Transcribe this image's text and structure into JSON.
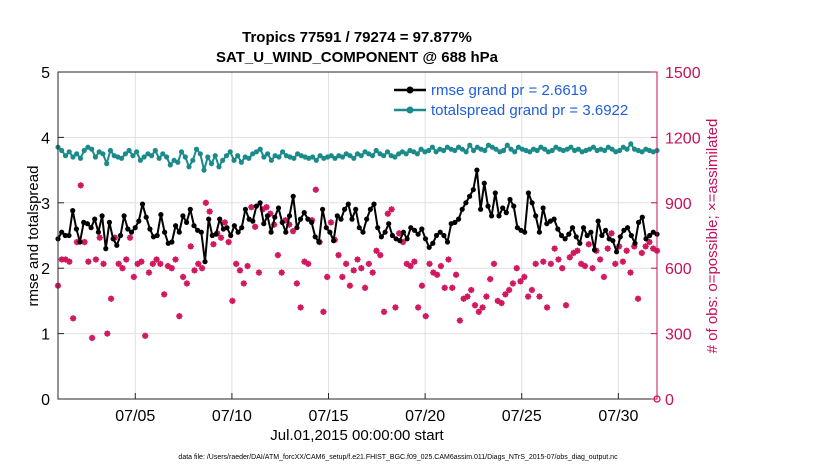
{
  "chart_data": {
    "type": "line",
    "title_line1": "Tropics 77591 / 79274 = 97.877%",
    "title_line2": "SAT_U_WIND_COMPONENT @ 688 hPa",
    "xlabel": "Jul.01,2015 00:00:00 start",
    "ylabel_left": "rmse and totalspread",
    "ylabel_right": "# of obs: o=possible; ×=assimilated",
    "footnote": "data file: /Users/raeder/DAI/ATM_forcXX/CAM6_setup/f.e21.FHIST_BGC.f09_025.CAM6assim.011/Diags_NTrS_2015-07/obs_diag_output.nc",
    "x_range": [
      1,
      32
    ],
    "ylim_left": [
      0,
      5
    ],
    "ylim_right": [
      0,
      1500
    ],
    "x_ticks": [
      5,
      10,
      15,
      20,
      25,
      30
    ],
    "x_tick_labels": [
      "07/05",
      "07/10",
      "07/15",
      "07/20",
      "07/25",
      "07/30"
    ],
    "y_ticks_left": [
      0,
      1,
      2,
      3,
      4,
      5
    ],
    "y_ticks_left_labels": [
      "0",
      "1",
      "2",
      "3",
      "4",
      "5"
    ],
    "y_ticks_right": [
      0,
      300,
      600,
      900,
      1200,
      1500
    ],
    "y_ticks_right_labels": [
      "0",
      "300",
      "600",
      "900",
      "1200",
      "1500"
    ],
    "grid": true,
    "legend_position": "top-right",
    "series": [
      {
        "name": "rmse grand pr = 2.6619",
        "axis": "left",
        "color": "#000000",
        "values": [
          2.45,
          2.55,
          2.5,
          2.5,
          2.88,
          2.6,
          2.4,
          2.7,
          2.68,
          2.62,
          2.75,
          2.55,
          2.8,
          2.3,
          2.7,
          2.45,
          2.35,
          2.5,
          2.8,
          2.6,
          2.55,
          2.62,
          2.72,
          2.98,
          2.78,
          2.6,
          2.48,
          2.5,
          2.82,
          2.55,
          2.38,
          2.4,
          2.65,
          2.55,
          2.8,
          2.7,
          2.9,
          2.65,
          2.58,
          2.55,
          2.1,
          2.75,
          2.5,
          2.52,
          2.75,
          2.6,
          2.62,
          2.5,
          2.65,
          2.55,
          2.62,
          2.9,
          2.75,
          2.72,
          2.95,
          3.0,
          2.68,
          2.8,
          2.55,
          2.78,
          2.92,
          2.7,
          2.55,
          2.8,
          3.1,
          2.62,
          2.75,
          2.85,
          2.75,
          2.7,
          2.48,
          2.4,
          2.9,
          2.62,
          2.55,
          2.42,
          2.8,
          2.75,
          2.9,
          2.98,
          2.75,
          2.9,
          2.62,
          2.55,
          2.75,
          2.9,
          2.98,
          2.62,
          2.48,
          2.55,
          2.68,
          2.5,
          2.45,
          2.42,
          2.55,
          2.45,
          2.62,
          2.58,
          2.52,
          2.6,
          2.45,
          2.32,
          2.38,
          2.5,
          2.55,
          2.5,
          2.4,
          2.68,
          2.7,
          2.75,
          2.9,
          3.0,
          3.1,
          3.2,
          3.5,
          2.9,
          3.3,
          2.95,
          2.8,
          3.15,
          2.8,
          2.92,
          2.85,
          3.05,
          2.95,
          2.62,
          2.58,
          2.55,
          3.15,
          3.0,
          2.8,
          2.55,
          2.92,
          2.68,
          2.72,
          2.75,
          2.6,
          2.5,
          2.45,
          2.52,
          2.62,
          2.48,
          2.38,
          2.62,
          2.5,
          2.55,
          2.28,
          2.72,
          2.5,
          2.58,
          2.45,
          2.42,
          2.25,
          2.48,
          2.58,
          2.62,
          2.5,
          2.38,
          2.7,
          2.78,
          2.45,
          2.5,
          2.55,
          2.52
        ]
      },
      {
        "name": "totalspread grand pr = 3.6922",
        "axis": "left",
        "color": "#1b8a8a",
        "values": [
          3.85,
          3.8,
          3.72,
          3.78,
          3.7,
          3.75,
          3.68,
          3.8,
          3.85,
          3.82,
          3.7,
          3.78,
          3.75,
          3.6,
          3.8,
          3.72,
          3.7,
          3.68,
          3.75,
          3.8,
          3.72,
          3.78,
          3.65,
          3.7,
          3.75,
          3.72,
          3.8,
          3.68,
          3.75,
          3.7,
          3.58,
          3.65,
          3.62,
          3.78,
          3.7,
          3.55,
          3.65,
          3.82,
          3.75,
          3.5,
          3.7,
          3.6,
          3.72,
          3.55,
          3.65,
          3.72,
          3.78,
          3.65,
          3.72,
          3.62,
          3.7,
          3.68,
          3.75,
          3.78,
          3.82,
          3.7,
          3.75,
          3.65,
          3.72,
          3.7,
          3.78,
          3.72,
          3.7,
          3.68,
          3.75,
          3.72,
          3.7,
          3.68,
          3.7,
          3.65,
          3.72,
          3.68,
          3.7,
          3.72,
          3.68,
          3.72,
          3.7,
          3.75,
          3.72,
          3.68,
          3.75,
          3.72,
          3.78,
          3.75,
          3.72,
          3.8,
          3.75,
          3.72,
          3.78,
          3.72,
          3.7,
          3.75,
          3.78,
          3.75,
          3.8,
          3.78,
          3.75,
          3.82,
          3.78,
          3.8,
          3.85,
          3.78,
          3.82,
          3.8,
          3.85,
          3.82,
          3.8,
          3.85,
          3.82,
          3.78,
          3.88,
          3.8,
          3.85,
          3.82,
          3.8,
          3.88,
          3.85,
          3.82,
          3.78,
          3.8,
          3.88,
          3.82,
          3.78,
          3.85,
          3.82,
          3.8,
          3.78,
          3.82,
          3.8,
          3.85,
          3.82,
          3.78,
          3.8,
          3.85,
          3.82,
          3.8,
          3.82,
          3.85,
          3.8,
          3.82,
          3.78,
          3.8,
          3.82,
          3.85,
          3.8,
          3.82,
          3.8,
          3.85,
          3.82,
          3.78,
          3.8,
          3.85,
          3.82,
          3.9,
          3.82,
          3.8,
          3.78,
          3.82,
          3.8,
          3.78,
          3.8
        ]
      }
    ],
    "obs_series": {
      "name": "# of obs",
      "axis": "right",
      "color": "#d1165e",
      "values": [
        520,
        640,
        640,
        630,
        370,
        720,
        980,
        720,
        630,
        280,
        640,
        740,
        620,
        300,
        460,
        740,
        620,
        600,
        640,
        740,
        560,
        620,
        630,
        290,
        580,
        620,
        640,
        620,
        480,
        610,
        600,
        640,
        380,
        560,
        530,
        700,
        590,
        620,
        600,
        900,
        860,
        710,
        760,
        740,
        810,
        720,
        450,
        620,
        590,
        530,
        610,
        880,
        790,
        580,
        870,
        880,
        850,
        800,
        660,
        580,
        820,
        800,
        770,
        530,
        420,
        630,
        620,
        820,
        960,
        720,
        400,
        560,
        810,
        730,
        660,
        560,
        620,
        520,
        590,
        640,
        600,
        510,
        620,
        580,
        680,
        660,
        400,
        850,
        870,
        420,
        760,
        720,
        620,
        610,
        630,
        420,
        520,
        380,
        620,
        580,
        570,
        610,
        510,
        640,
        510,
        570,
        360,
        460,
        470,
        500,
        430,
        400,
        420,
        470,
        550,
        620,
        450,
        440,
        480,
        500,
        530,
        600,
        540,
        560,
        470,
        500,
        620,
        470,
        630,
        420,
        620,
        690,
        640,
        600,
        430,
        650,
        670,
        680,
        620,
        610,
        710,
        600,
        680,
        640,
        560,
        690,
        760,
        620,
        700,
        630,
        680,
        580,
        700,
        460,
        670,
        700,
        720,
        690,
        680
      ]
    }
  }
}
